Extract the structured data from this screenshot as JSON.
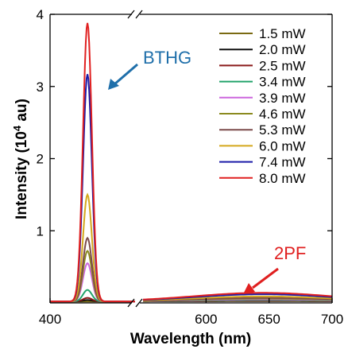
{
  "chart_data": {
    "type": "line",
    "xlabel": "Wavelength (nm)",
    "ylabel_main": "Intensity (10",
    "ylabel_sup": "4",
    "ylabel_tail": " au)",
    "ylim": [
      0,
      4
    ],
    "x_segment_1": [
      400,
      450
    ],
    "x_segment_2": [
      550,
      700
    ],
    "x_ticks": [
      "400",
      "600",
      "650",
      "700"
    ],
    "y_ticks": [
      "1",
      "2",
      "3",
      "4"
    ],
    "annotations": {
      "bthg": "BTHG",
      "tpf": "2PF"
    },
    "legend_position": "top-right",
    "peak_center_nm": 422,
    "series": [
      {
        "name": "1.5 mW",
        "color": "#7a6a12",
        "peak": 0.02,
        "pf": 0.005
      },
      {
        "name": "2.0 mW",
        "color": "#111111",
        "peak": 0.04,
        "pf": 0.008
      },
      {
        "name": "2.5 mW",
        "color": "#8b1a1a",
        "peak": 0.07,
        "pf": 0.012
      },
      {
        "name": "3.4 mW",
        "color": "#22a36b",
        "peak": 0.18,
        "pf": 0.02
      },
      {
        "name": "3.9 mW",
        "color": "#cc66dd",
        "peak": 0.55,
        "pf": 0.03
      },
      {
        "name": "4.6 mW",
        "color": "#8b8a1f",
        "peak": 0.72,
        "pf": 0.04
      },
      {
        "name": "5.3 mW",
        "color": "#7b4a4a",
        "peak": 0.9,
        "pf": 0.05
      },
      {
        "name": "6.0 mW",
        "color": "#d4a81c",
        "peak": 1.5,
        "pf": 0.07
      },
      {
        "name": "7.4 mW",
        "color": "#1a1aa8",
        "peak": 3.17,
        "pf": 0.1
      },
      {
        "name": "8.0 mW",
        "color": "#e02020",
        "peak": 3.88,
        "pf": 0.12
      }
    ]
  }
}
